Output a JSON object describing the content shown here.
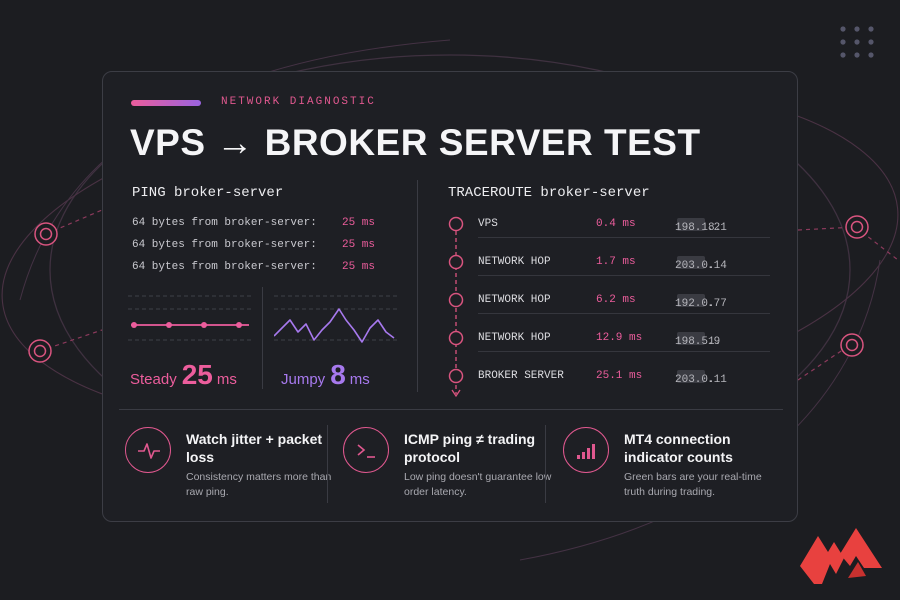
{
  "header": {
    "eyebrow": "NETWORK DIAGNOSTIC",
    "title": "VPS → BROKER SERVER TEST"
  },
  "ping": {
    "title": "PING broker-server",
    "rows": [
      {
        "text": "64 bytes from broker-server:",
        "ms": "25 ms"
      },
      {
        "text": "64 bytes from broker-server:",
        "ms": "25 ms"
      },
      {
        "text": "64 bytes from broker-server:",
        "ms": "25 ms"
      }
    ],
    "steady": {
      "label": "Steady",
      "value": "25",
      "unit": "ms"
    },
    "jumpy": {
      "label": "Jumpy",
      "value": "8",
      "unit": "ms"
    }
  },
  "traceroute": {
    "title": "TRACEROUTE broker-server",
    "hops": [
      {
        "name": "VPS",
        "latency": "0.4 ms",
        "ip_prefix": "198.18.",
        "ip_suffix": ".21"
      },
      {
        "name": "NETWORK HOP",
        "latency": "1.7 ms",
        "ip_prefix": "203.0.",
        "ip_suffix": ".14"
      },
      {
        "name": "NETWORK HOP",
        "latency": "6.2 ms",
        "ip_prefix": "192.0.",
        "ip_suffix": ".77"
      },
      {
        "name": "NETWORK HOP",
        "latency": "12.9 ms",
        "ip_prefix": "198.51.",
        "ip_suffix": ".9"
      },
      {
        "name": "BROKER SERVER",
        "latency": "25.1 ms",
        "ip_prefix": "203.0.",
        "ip_suffix": ".11"
      }
    ]
  },
  "features": [
    {
      "icon": "pulse-icon",
      "title": "Watch jitter + packet loss",
      "desc": "Consistency matters more than raw ping."
    },
    {
      "icon": "terminal-icon",
      "title": "ICMP ping ≠ trading protocol",
      "desc": "Low ping doesn't guarantee low order latency."
    },
    {
      "icon": "signal-bars-icon",
      "title": "MT4 connection indicator counts",
      "desc": "Green bars are your real-time truth during trading."
    }
  ],
  "colors": {
    "accent_pink": "#ec5d9c",
    "accent_purple": "#a779ee",
    "background": "#1c1d21",
    "card": "#1e1f24"
  }
}
